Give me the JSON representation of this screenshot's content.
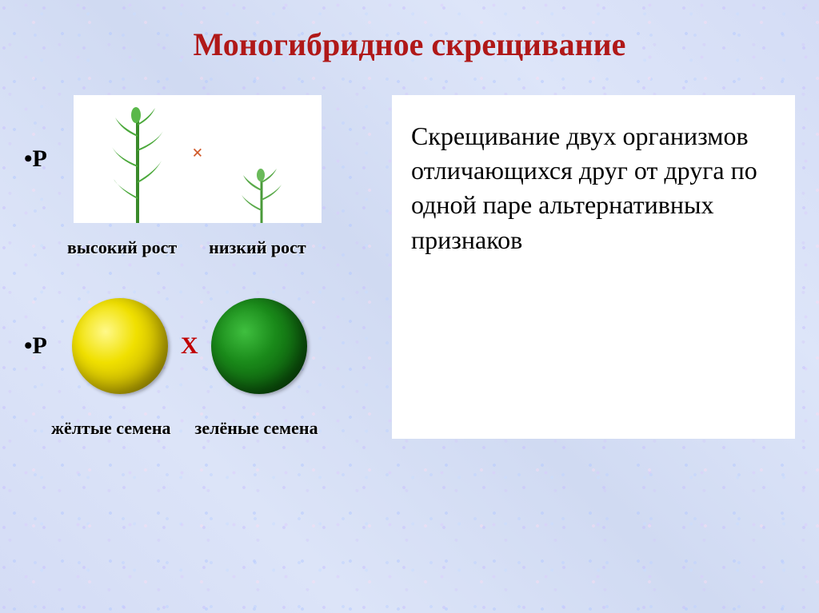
{
  "title": {
    "text": "Моногибридное скрещивание",
    "color": "#b01818",
    "fontsize": 40
  },
  "definition": {
    "text": "Скрещивание двух организмов отличающихся друг от друга по одной паре альтернативных признаков",
    "fontsize": 32,
    "color": "#000000",
    "background": "#ffffff"
  },
  "generation_label": "P",
  "generation_fontsize": 30,
  "plants": {
    "label_tall": "высокий рост",
    "label_short": "низкий рост",
    "label_fontsize": 22,
    "label_color": "#000000",
    "cross_symbol": "×",
    "cross_color": "#d05a2a",
    "cross_fontsize": 24,
    "tall_plant_color": "#3a8a2a",
    "short_plant_color": "#4a9a3a",
    "box_background": "#ffffff"
  },
  "seeds": {
    "label_yellow": "жёлтые семена",
    "label_green": "зелёные семена",
    "label_fontsize": 22,
    "label_color": "#000000",
    "cross_symbol": "Х",
    "cross_color": "#c00000",
    "cross_fontsize": 30,
    "yellow_diameter": 120,
    "green_diameter": 120,
    "yellow_color": "#e8d800",
    "green_color": "#1a7a1a"
  },
  "background_color": "#d8e0f5"
}
